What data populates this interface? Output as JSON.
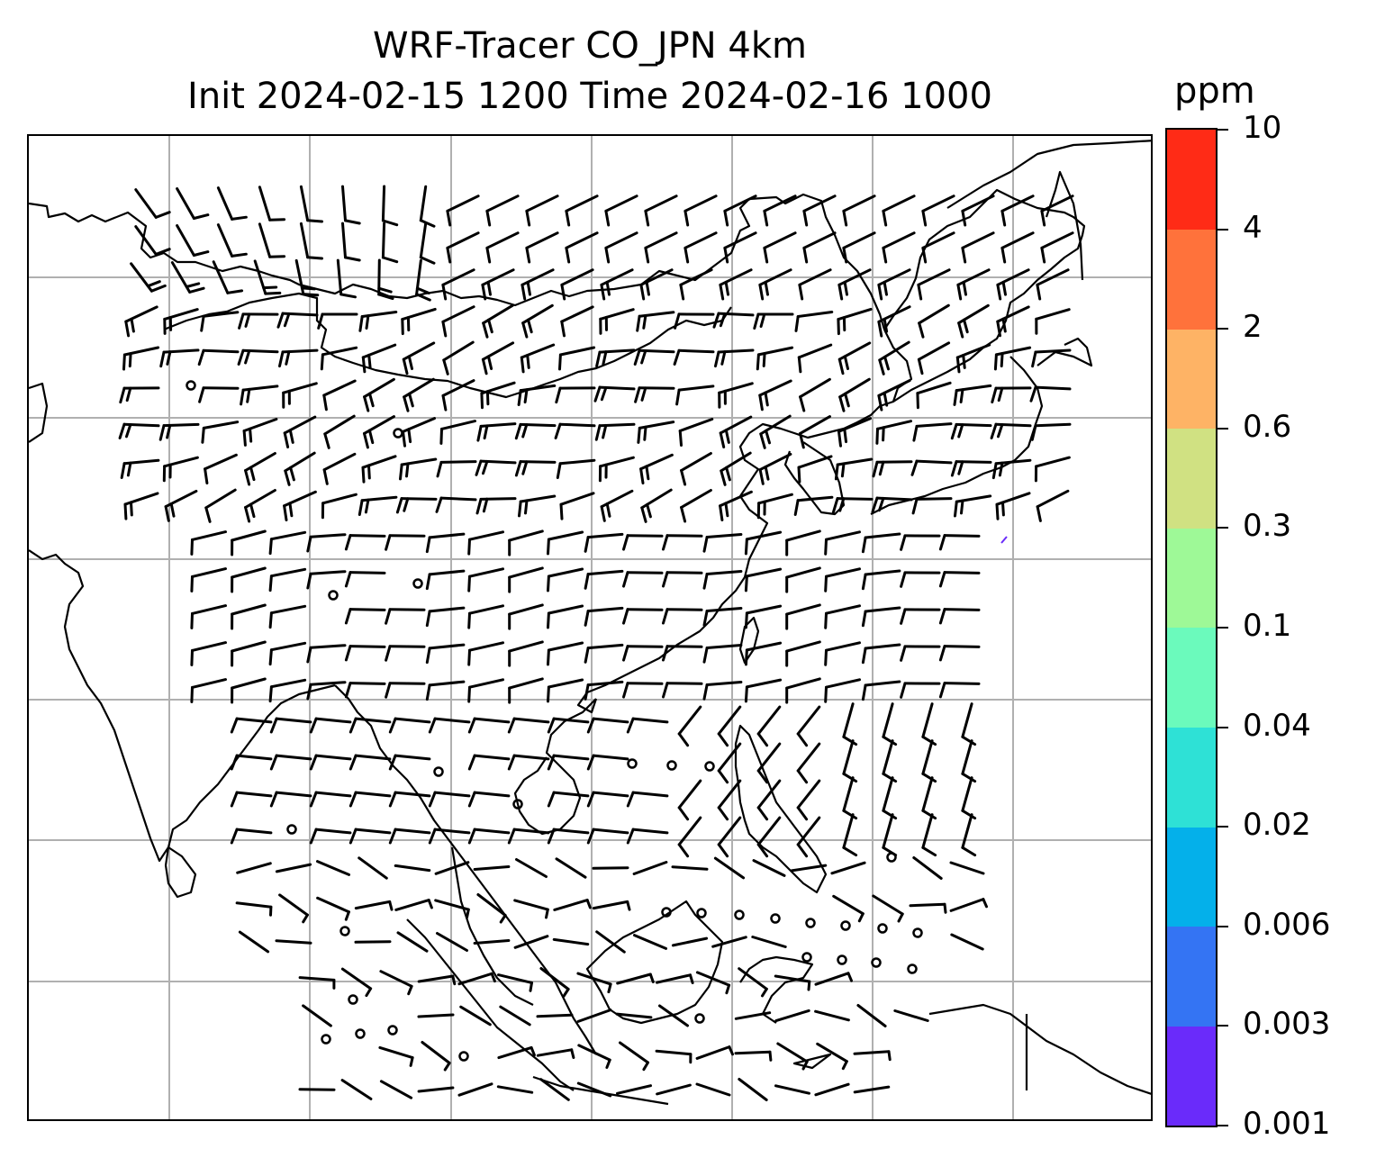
{
  "title": {
    "line1": "WRF-Tracer CO_JPN 4km",
    "line2": "Init 2024-02-15 1200 Time 2024-02-16 1000"
  },
  "map": {
    "gridline_color": "#b0b0b0",
    "coastline_color": "#000000",
    "barb_color": "#000000",
    "gridlines": true
  },
  "colorbar": {
    "unit": "ppm",
    "tick_labels": [
      "0.001",
      "0.003",
      "0.006",
      "0.02",
      "0.04",
      "0.1",
      "0.3",
      "0.6",
      "2",
      "4",
      "10"
    ],
    "colors": [
      "#6a2bfa",
      "#3474f3",
      "#04b0ea",
      "#2ee1d6",
      "#6bfabc",
      "#9ef997",
      "#d0e182",
      "#feb365",
      "#ff723b",
      "#ff2b16"
    ]
  }
}
